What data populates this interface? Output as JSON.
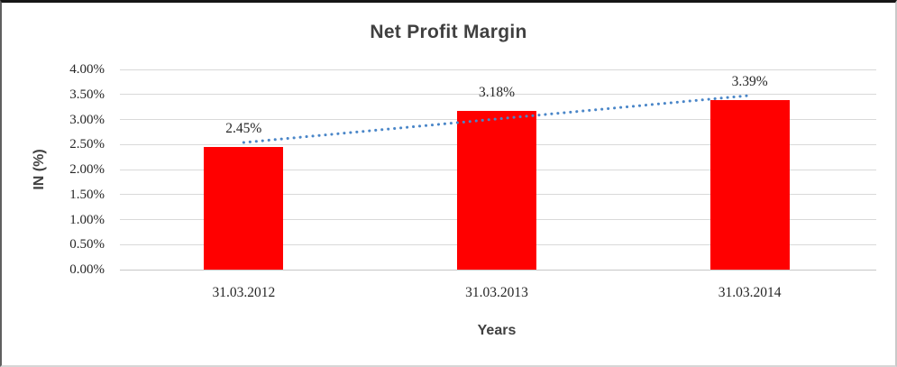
{
  "chart_data": {
    "type": "bar",
    "title": "Net Profit Margin",
    "xlabel": "Years",
    "ylabel": "IN (%)",
    "categories": [
      "31.03.2012",
      "31.03.2013",
      "31.03.2014"
    ],
    "values": [
      2.45,
      3.18,
      3.39
    ],
    "data_labels": [
      "2.45%",
      "3.18%",
      "3.39%"
    ],
    "series": [
      {
        "name": "Net Profit Margin",
        "values": [
          2.45,
          3.18,
          3.39
        ]
      }
    ],
    "ylim": [
      0,
      4
    ],
    "ytick_step": 0.5,
    "ytick_labels": [
      "0.00%",
      "0.50%",
      "1.00%",
      "1.50%",
      "2.00%",
      "2.50%",
      "3.00%",
      "3.50%",
      "4.00%"
    ],
    "grid": true,
    "legend": "none",
    "trendline": {
      "type": "linear",
      "start_value": 2.54,
      "end_value": 3.48
    },
    "colors": {
      "bar": "#ff0000",
      "trendline": "#4a86c8",
      "gridline": "#d9d9d9",
      "axis_line": "#c6c6c6",
      "title_text": "#404040",
      "tick_text": "#262626"
    }
  }
}
